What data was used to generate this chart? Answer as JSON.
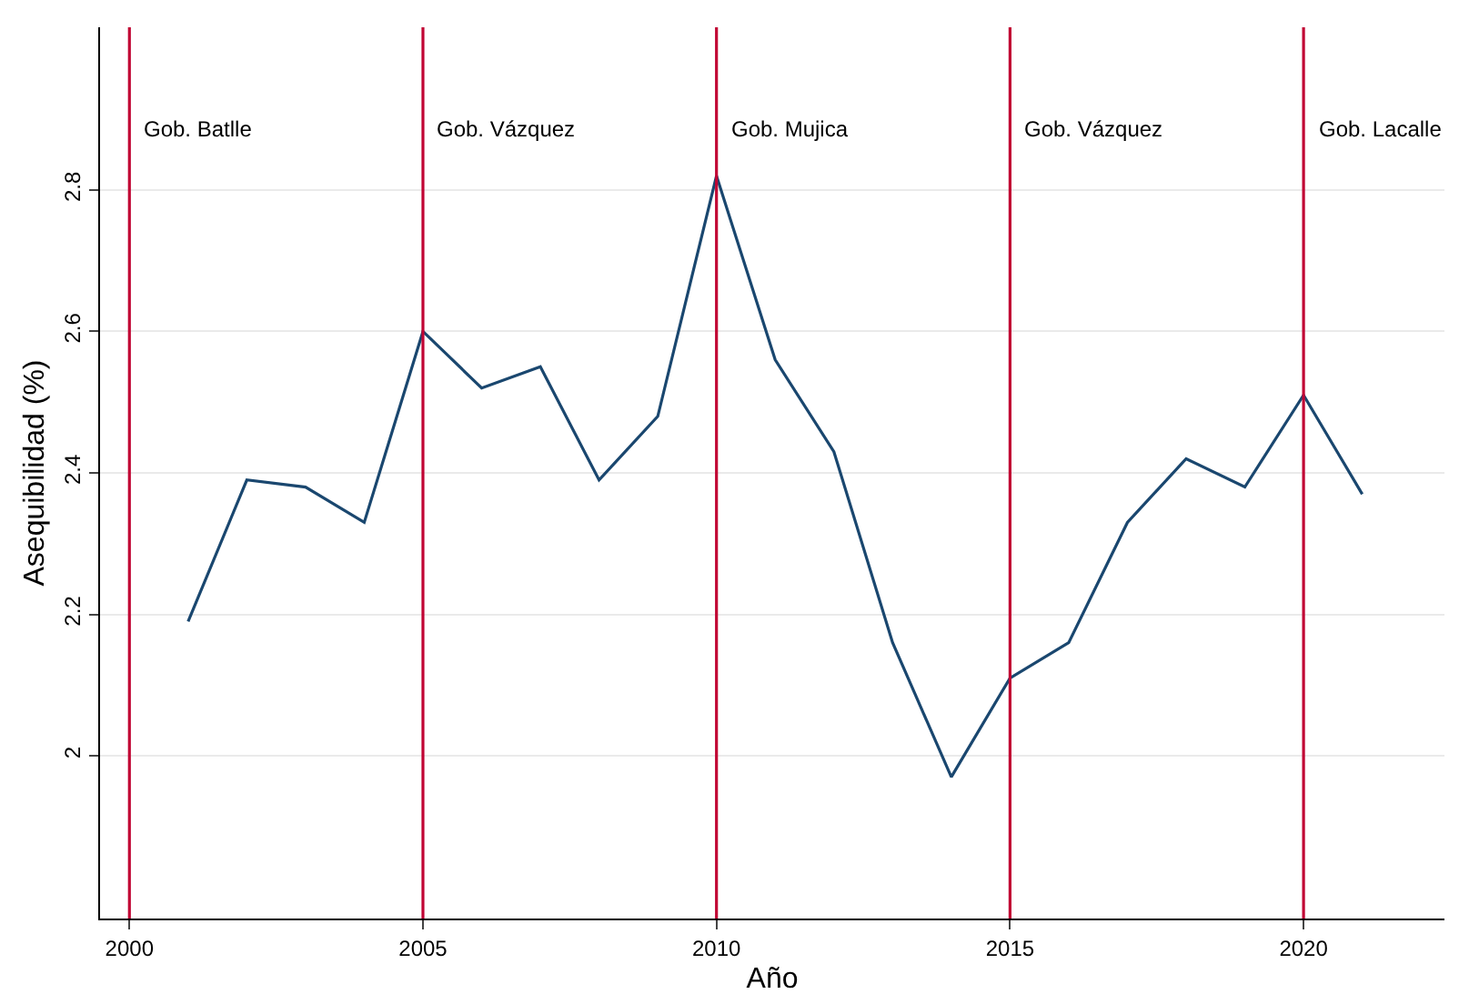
{
  "chart_data": {
    "type": "line",
    "xlabel": "Año",
    "ylabel": "Asequibilidad (%)",
    "x": [
      2001,
      2002,
      2003,
      2004,
      2005,
      2006,
      2007,
      2008,
      2009,
      2010,
      2011,
      2012,
      2013,
      2014,
      2015,
      2016,
      2017,
      2018,
      2019,
      2020,
      2021
    ],
    "series": [
      {
        "color": "#1a476f",
        "values": [
          2.19,
          2.39,
          2.38,
          2.33,
          2.6,
          2.52,
          2.55,
          2.39,
          2.48,
          2.82,
          2.56,
          2.43,
          2.16,
          1.97,
          2.11,
          2.16,
          2.33,
          2.42,
          2.38,
          2.51,
          2.37
        ]
      }
    ],
    "xlim": [
      1999.5,
      2022.4
    ],
    "ylim": [
      1.77,
      3.03
    ],
    "xticks": [
      2000,
      2005,
      2010,
      2015,
      2020
    ],
    "yticks": [
      2,
      2.2,
      2.4,
      2.6,
      2.8
    ],
    "grid": "y",
    "marker": "none",
    "line_style": "solid",
    "ref_lines": [
      {
        "axis": "x",
        "value": 2000,
        "label": "Gob. Batlle",
        "color": "#c10534"
      },
      {
        "axis": "x",
        "value": 2005,
        "label": "Gob. Vázquez",
        "color": "#c10534"
      },
      {
        "axis": "x",
        "value": 2010,
        "label": "Gob. Mujica",
        "color": "#c10534"
      },
      {
        "axis": "x",
        "value": 2015,
        "label": "Gob. Vázquez",
        "color": "#c10534"
      },
      {
        "axis": "x",
        "value": 2020,
        "label": "Gob. Lacalle",
        "color": "#c10534"
      }
    ]
  }
}
